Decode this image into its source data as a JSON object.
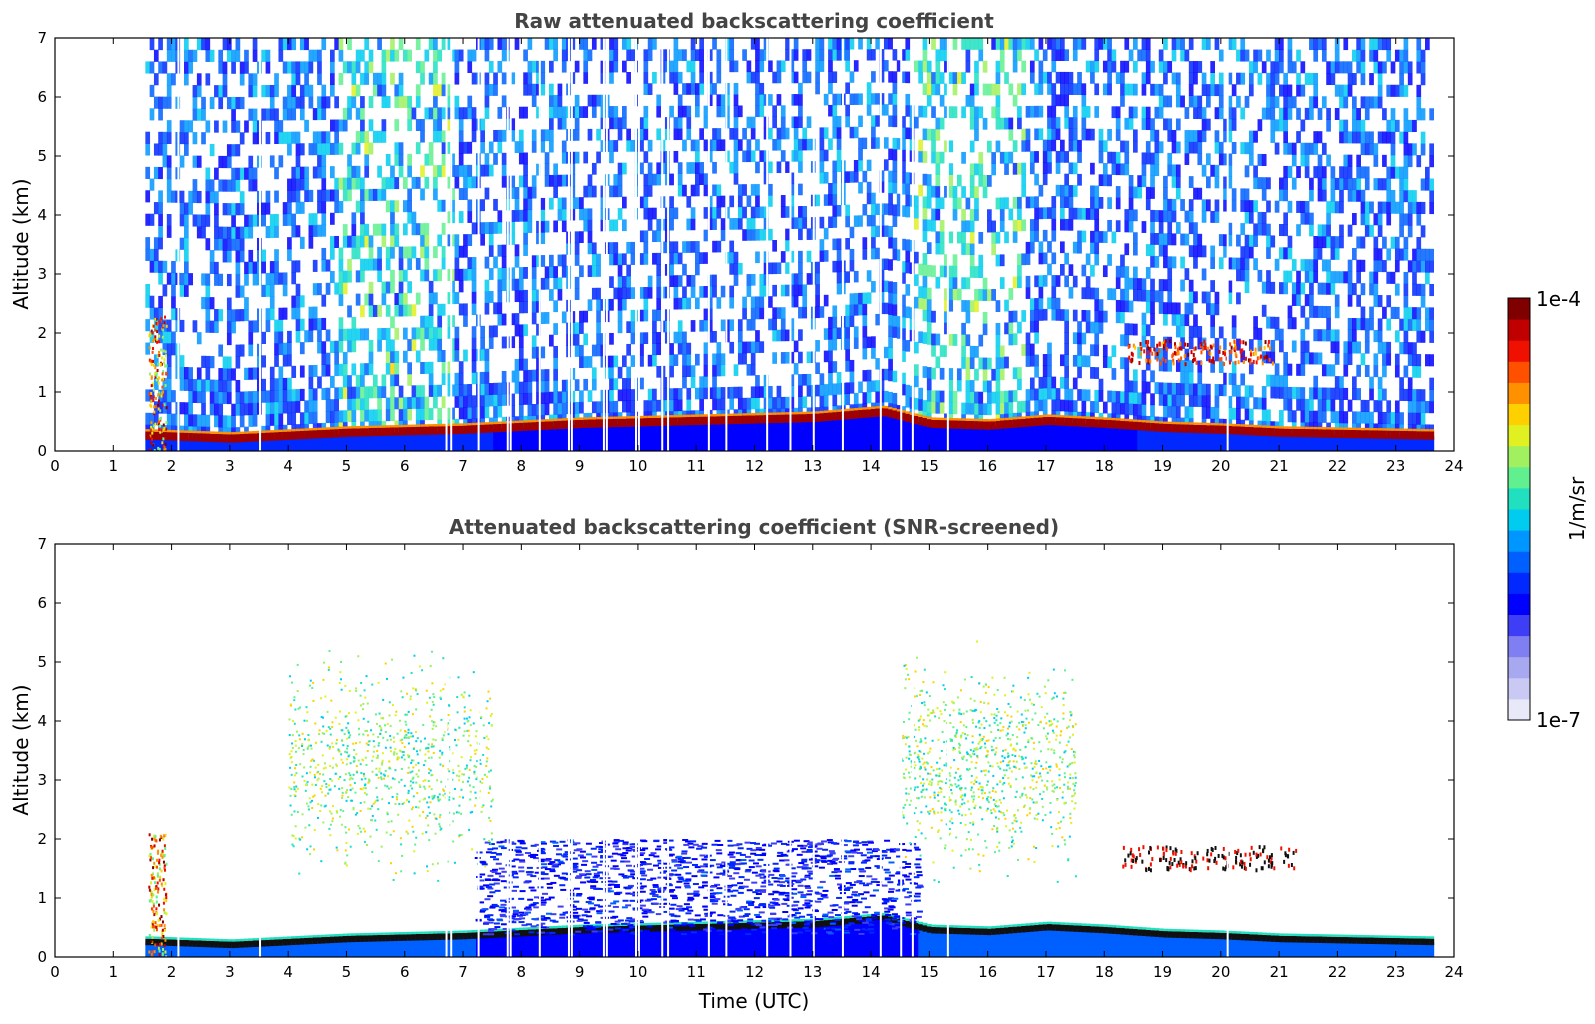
{
  "chart_data": [
    {
      "type": "heatmap",
      "title": "Raw attenuated backscattering coefficient",
      "xlabel": "",
      "ylabel": "Altitude (km)",
      "xlim": [
        0,
        24
      ],
      "ylim": [
        0,
        7
      ],
      "xticks": [
        "0",
        "1",
        "2",
        "3",
        "4",
        "5",
        "6",
        "7",
        "8",
        "9",
        "10",
        "11",
        "12",
        "13",
        "14",
        "15",
        "16",
        "17",
        "18",
        "19",
        "20",
        "21",
        "22",
        "23",
        "24"
      ],
      "yticks": [
        "0",
        "1",
        "2",
        "3",
        "4",
        "5",
        "6",
        "7"
      ],
      "data_extent_hours": [
        1.55,
        23.65
      ],
      "boundary_layer_height_km": [
        [
          1.6,
          0.25
        ],
        [
          3,
          0.2
        ],
        [
          5,
          0.3
        ],
        [
          7,
          0.35
        ],
        [
          9,
          0.45
        ],
        [
          11,
          0.5
        ],
        [
          13,
          0.55
        ],
        [
          14.2,
          0.65
        ],
        [
          15,
          0.45
        ],
        [
          16,
          0.42
        ],
        [
          17,
          0.5
        ],
        [
          18,
          0.45
        ],
        [
          19,
          0.38
        ],
        [
          20,
          0.35
        ],
        [
          21,
          0.3
        ],
        [
          23.6,
          0.25
        ]
      ],
      "features": [
        {
          "kind": "plume",
          "x_hours": [
            1.6,
            1.9
          ],
          "alt_km": [
            0,
            2.3
          ],
          "level": "high"
        },
        {
          "kind": "aerosol_layer",
          "x_hours": [
            18.4,
            20.9
          ],
          "alt_km": [
            1.5,
            1.9
          ],
          "level": "high"
        }
      ]
    },
    {
      "type": "heatmap",
      "title": "Attenuated backscattering coefficient (SNR-screened)",
      "xlabel": "Time (UTC)",
      "ylabel": "Altitude (km)",
      "xlim": [
        0,
        24
      ],
      "ylim": [
        0,
        7
      ],
      "xticks": [
        "0",
        "1",
        "2",
        "3",
        "4",
        "5",
        "6",
        "7",
        "8",
        "9",
        "10",
        "11",
        "12",
        "13",
        "14",
        "15",
        "16",
        "17",
        "18",
        "19",
        "20",
        "21",
        "22",
        "23",
        "24"
      ],
      "yticks": [
        "0",
        "1",
        "2",
        "3",
        "4",
        "5",
        "6",
        "7"
      ],
      "data_extent_hours": [
        1.55,
        23.65
      ],
      "features": [
        {
          "kind": "plume",
          "x_hours": [
            1.6,
            1.9
          ],
          "alt_km": [
            0,
            2.1
          ],
          "level": "high"
        },
        {
          "kind": "residual_layer",
          "x_hours": [
            7.2,
            14.8
          ],
          "alt_km": [
            0.4,
            2.0
          ],
          "level": "low"
        },
        {
          "kind": "noise_region",
          "x_hours": [
            4.0,
            7.5
          ],
          "alt_km": [
            1.0,
            5.5
          ],
          "level": "medium"
        },
        {
          "kind": "noise_region",
          "x_hours": [
            14.5,
            17.5
          ],
          "alt_km": [
            1.0,
            5.5
          ],
          "level": "medium"
        },
        {
          "kind": "aerosol_layer",
          "x_hours": [
            18.3,
            21.3
          ],
          "alt_km": [
            1.5,
            1.9
          ],
          "level": "high"
        }
      ]
    }
  ],
  "colorbar": {
    "label": "1/m/sr",
    "max_label": "1e-4",
    "min_label": "1e-7",
    "colors": [
      "#e8e8f8",
      "#c9c9f4",
      "#a8a8f0",
      "#7f7ff2",
      "#3e3ef6",
      "#0000ff",
      "#0028ff",
      "#0060ff",
      "#0096ff",
      "#00ccf0",
      "#20e0c0",
      "#60f090",
      "#a0f060",
      "#e0f020",
      "#ffd000",
      "#ff9000",
      "#ff5000",
      "#f01000",
      "#c00000",
      "#800000"
    ]
  },
  "accent_colors": {
    "title": "#444444",
    "layer_dark_red": "#a00000",
    "screen_blue": "#0000ff"
  }
}
